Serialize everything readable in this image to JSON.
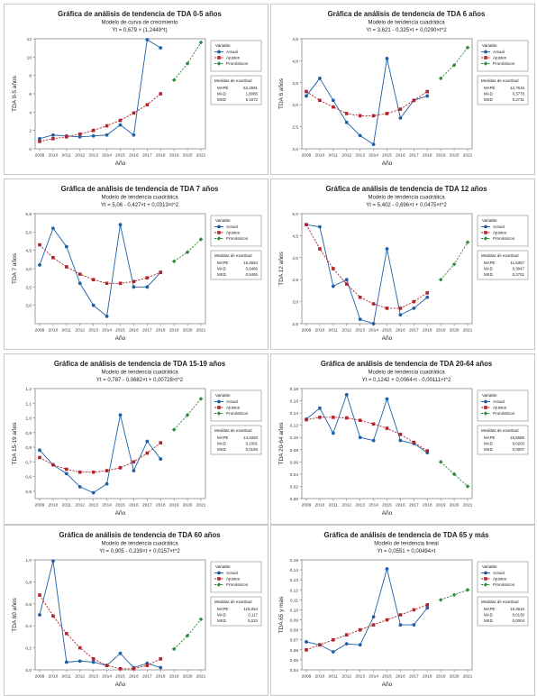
{
  "legend": {
    "header": "Variable",
    "actual": "Actual",
    "fits": "Ajustes",
    "forecast": "Pronósticos",
    "measures_title": "Medidas de exactitud"
  },
  "colors": {
    "actual": "#1f5fa8",
    "fits": "#b0242a",
    "forecast": "#2e8b3e"
  },
  "chart_data": [
    {
      "type": "line",
      "title": "Gráfica de análisis de tendencia de TDA 0-5 años",
      "subtitle": "Modelo de curva de crecimiento",
      "equation": "Yt = 0,679 × (1,2449^t)",
      "xlabel": "Año",
      "ylabel": "TDA 0-5 años",
      "ylim": [
        0,
        12
      ],
      "yticks": [
        "0",
        "2",
        "4",
        "6",
        "8",
        "10",
        "12"
      ],
      "x": [
        "2009",
        "2010",
        "2011",
        "2012",
        "2013",
        "2014",
        "2015",
        "2016",
        "2017",
        "2018",
        "2019",
        "2020",
        "2021"
      ],
      "series": [
        {
          "name": "Actual",
          "x": [
            2009,
            2010,
            2011,
            2012,
            2013,
            2014,
            2015,
            2016,
            2017,
            2018
          ],
          "values": [
            1.1,
            1.5,
            1.4,
            1.3,
            1.4,
            1.5,
            2.6,
            1.5,
            11.9,
            11.0
          ]
        },
        {
          "name": "Ajustes",
          "x": [
            2009,
            2010,
            2011,
            2012,
            2013,
            2014,
            2015,
            2016,
            2017,
            2018
          ],
          "values": [
            0.8,
            1.1,
            1.3,
            1.6,
            2.0,
            2.5,
            3.1,
            3.9,
            4.8,
            6.0
          ]
        },
        {
          "name": "Pronósticos",
          "x": [
            2019,
            2020,
            2021
          ],
          "values": [
            7.5,
            9.3,
            11.6
          ]
        }
      ],
      "accuracy": [
        [
          "MAPE",
          "52,2591"
        ],
        [
          "MAD",
          "1,8085"
        ],
        [
          "MSD",
          "6,1672"
        ]
      ]
    },
    {
      "type": "line",
      "title": "Gráfica de análisis de tendencia de TDA 6 años",
      "subtitle": "Modelo de tendencia cuadrática",
      "equation": "Yt = 3,621 - 0,325×t + 0,0290×t^2",
      "xlabel": "Año",
      "ylabel": "TDA 6 años",
      "ylim": [
        2.0,
        4.5
      ],
      "yticks": [
        "2,0",
        "2,5",
        "3,0",
        "3,5",
        "4,0",
        "4,5"
      ],
      "x": [
        "2009",
        "2010",
        "2011",
        "2012",
        "2013",
        "2014",
        "2015",
        "2016",
        "2017",
        "2018",
        "2019",
        "2020",
        "2021"
      ],
      "series": [
        {
          "name": "Actual",
          "x": [
            2009,
            2010,
            2011,
            2012,
            2013,
            2014,
            2015,
            2016,
            2017,
            2018
          ],
          "values": [
            3.2,
            3.6,
            3.1,
            2.6,
            2.3,
            2.1,
            4.05,
            2.7,
            3.1,
            3.2
          ]
        },
        {
          "name": "Ajustes",
          "x": [
            2009,
            2010,
            2011,
            2012,
            2013,
            2014,
            2015,
            2016,
            2017,
            2018
          ],
          "values": [
            3.3,
            3.1,
            2.95,
            2.8,
            2.75,
            2.75,
            2.8,
            2.9,
            3.1,
            3.3
          ]
        },
        {
          "name": "Pronósticos",
          "x": [
            2019,
            2020,
            2021
          ],
          "values": [
            3.6,
            3.9,
            4.3
          ]
        }
      ],
      "accuracy": [
        [
          "MAPE",
          "12,7616"
        ],
        [
          "MAD",
          "0,3778"
        ],
        [
          "MSD",
          "0,2731"
        ]
      ]
    },
    {
      "type": "line",
      "title": "Gráfica de análisis de tendencia de TDA 7 años",
      "subtitle": "Modelo de tendencia cuadrática",
      "equation": "Yt = 5,06 - 0,427×t + 0,0313×t^2",
      "xlabel": "Año",
      "ylabel": "TDA 7 años",
      "ylim": [
        2.5,
        5.5
      ],
      "yticks": [
        "3,0",
        "3,5",
        "4,0",
        "4,5",
        "5,0",
        "5,5"
      ],
      "x": [
        "2009",
        "2010",
        "2011",
        "2012",
        "2013",
        "2014",
        "2015",
        "2016",
        "2017",
        "2018",
        "2019",
        "2020",
        "2021"
      ],
      "series": [
        {
          "name": "Actual",
          "x": [
            2009,
            2010,
            2011,
            2012,
            2013,
            2014,
            2015,
            2016,
            2017,
            2018
          ],
          "values": [
            4.1,
            5.1,
            4.6,
            3.6,
            3.0,
            2.7,
            5.2,
            3.5,
            3.5,
            3.9
          ]
        },
        {
          "name": "Ajustes",
          "x": [
            2009,
            2010,
            2011,
            2012,
            2013,
            2014,
            2015,
            2016,
            2017,
            2018
          ],
          "values": [
            4.65,
            4.3,
            4.05,
            3.85,
            3.7,
            3.6,
            3.6,
            3.65,
            3.75,
            3.9
          ]
        },
        {
          "name": "Pronósticos",
          "x": [
            2019,
            2020,
            2021
          ],
          "values": [
            4.2,
            4.45,
            4.8
          ]
        }
      ],
      "accuracy": [
        [
          "MAPE",
          "15,2654"
        ],
        [
          "MAD",
          "0,6486"
        ],
        [
          "MSD",
          "0,5465"
        ]
      ]
    },
    {
      "type": "line",
      "title": "Gráfica de análisis de tendencia de TDA 12 años",
      "subtitle": "Modelo de tendencia cuadrática",
      "equation": "Yt = 5,402 - 0,696×t + 0,0475×t^2",
      "xlabel": "Año",
      "ylabel": "TDA 12 años",
      "ylim": [
        2.5,
        5.0
      ],
      "yticks": [
        "2,5",
        "3,0",
        "3,5",
        "4,0",
        "4,5",
        "5,0"
      ],
      "x": [
        "2009",
        "2010",
        "2011",
        "2012",
        "2013",
        "2014",
        "2015",
        "2016",
        "2017",
        "2018",
        "2019",
        "2020",
        "2021"
      ],
      "series": [
        {
          "name": "Actual",
          "x": [
            2009,
            2010,
            2011,
            2012,
            2013,
            2014,
            2015,
            2016,
            2017,
            2018
          ],
          "values": [
            4.75,
            4.7,
            3.35,
            3.5,
            2.6,
            2.5,
            4.2,
            2.7,
            2.85,
            3.1
          ]
        },
        {
          "name": "Ajustes",
          "x": [
            2009,
            2010,
            2011,
            2012,
            2013,
            2014,
            2015,
            2016,
            2017,
            2018
          ],
          "values": [
            4.75,
            4.2,
            3.75,
            3.4,
            3.1,
            2.95,
            2.85,
            2.85,
            3.0,
            3.2
          ]
        },
        {
          "name": "Pronósticos",
          "x": [
            2019,
            2020,
            2021
          ],
          "values": [
            3.5,
            3.85,
            4.35
          ]
        }
      ],
      "accuracy": [
        [
          "MAPE",
          "11,5357"
        ],
        [
          "MAD",
          "0,3947"
        ],
        [
          "MSD",
          "0,2751"
        ]
      ]
    },
    {
      "type": "line",
      "title": "Gráfica de análisis de tendencia de TDA 15-19 años",
      "subtitle": "Modelo de tendencia cuadrática",
      "equation": "Yt = 0,787 - 0,0682×t + 0,00728×t^2",
      "xlabel": "Año",
      "ylabel": "TDA 15-19 años",
      "ylim": [
        0.45,
        1.2
      ],
      "yticks": [
        "0,5",
        "0,6",
        "0,7",
        "0,8",
        "0,9",
        "1,0",
        "1,1",
        "1,2"
      ],
      "x": [
        "2009",
        "2010",
        "2011",
        "2012",
        "2013",
        "2014",
        "2015",
        "2016",
        "2017",
        "2018",
        "2019",
        "2020",
        "2021"
      ],
      "series": [
        {
          "name": "Actual",
          "x": [
            2009,
            2010,
            2011,
            2012,
            2013,
            2014,
            2015,
            2016,
            2017,
            2018
          ],
          "values": [
            0.78,
            0.68,
            0.62,
            0.53,
            0.49,
            0.55,
            1.02,
            0.64,
            0.84,
            0.72
          ]
        },
        {
          "name": "Ajustes",
          "x": [
            2009,
            2010,
            2011,
            2012,
            2013,
            2014,
            2015,
            2016,
            2017,
            2018
          ],
          "values": [
            0.73,
            0.68,
            0.65,
            0.63,
            0.63,
            0.64,
            0.66,
            0.7,
            0.76,
            0.83
          ]
        },
        {
          "name": "Pronósticos",
          "x": [
            2019,
            2020,
            2021
          ],
          "values": [
            0.92,
            1.02,
            1.13
          ]
        }
      ],
      "accuracy": [
        [
          "MAPE",
          "14,0383"
        ],
        [
          "MAD",
          "0,1001"
        ],
        [
          "MSD",
          "0,0193"
        ]
      ]
    },
    {
      "type": "line",
      "title": "Gráfica de análisis de tendencia de TDA 20-64 años",
      "subtitle": "Modelo de tendencia cuadrática",
      "equation": "Yt = 0,1242 + 0,0064×t - 0,00111×t^2",
      "xlabel": "Año",
      "ylabel": "TDA 20-64 años",
      "ylim": [
        0.0,
        0.18
      ],
      "yticks": [
        "0,00",
        "0,02",
        "0,04",
        "0,06",
        "0,08",
        "0,10",
        "0,12",
        "0,14",
        "0,16",
        "0,18"
      ],
      "x": [
        "2009",
        "2010",
        "2011",
        "2012",
        "2013",
        "2014",
        "2015",
        "2016",
        "2017",
        "2018",
        "2019",
        "2020",
        "2021"
      ],
      "series": [
        {
          "name": "Actual",
          "x": [
            2009,
            2010,
            2011,
            2012,
            2013,
            2014,
            2015,
            2016,
            2017,
            2018
          ],
          "values": [
            0.13,
            0.148,
            0.107,
            0.17,
            0.1,
            0.095,
            0.163,
            0.095,
            0.09,
            0.075
          ]
        },
        {
          "name": "Ajustes",
          "x": [
            2009,
            2010,
            2011,
            2012,
            2013,
            2014,
            2015,
            2016,
            2017,
            2018
          ],
          "values": [
            0.129,
            0.133,
            0.133,
            0.132,
            0.128,
            0.122,
            0.115,
            0.105,
            0.092,
            0.078
          ]
        },
        {
          "name": "Pronósticos",
          "x": [
            2019,
            2020,
            2021
          ],
          "values": [
            0.06,
            0.04,
            0.02
          ]
        }
      ],
      "accuracy": [
        [
          "MAPE",
          "16,5685"
        ],
        [
          "MAD",
          "0,0203"
        ],
        [
          "MSD",
          "0,0007"
        ]
      ]
    },
    {
      "type": "line",
      "title": "Gráfica de análisis de tendencia de TDA 60 años",
      "subtitle": "Modelo de tendencia cuadrática",
      "equation": "Yt = 0,905 - 0,239×t + 0,0157×t^2",
      "xlabel": "Año",
      "ylabel": "TDA 60 años",
      "ylim": [
        0.0,
        1.0
      ],
      "yticks": [
        "0,0",
        "0,2",
        "0,4",
        "0,6",
        "0,8",
        "1,0"
      ],
      "x": [
        "2009",
        "2010",
        "2011",
        "2012",
        "2013",
        "2014",
        "2015",
        "2016",
        "2017",
        "2018",
        "2019",
        "2020",
        "2021"
      ],
      "series": [
        {
          "name": "Actual",
          "x": [
            2009,
            2010,
            2011,
            2012,
            2013,
            2014,
            2015,
            2016,
            2017,
            2018
          ],
          "values": [
            0.5,
            0.99,
            0.07,
            0.08,
            0.07,
            0.04,
            0.15,
            0.02,
            0.06,
            0.02
          ]
        },
        {
          "name": "Ajustes",
          "x": [
            2009,
            2010,
            2011,
            2012,
            2013,
            2014,
            2015,
            2016,
            2017,
            2018
          ],
          "values": [
            0.68,
            0.49,
            0.33,
            0.2,
            0.1,
            0.04,
            0.01,
            0.01,
            0.04,
            0.1
          ]
        },
        {
          "name": "Pronósticos",
          "x": [
            2019,
            2020,
            2021
          ],
          "values": [
            0.19,
            0.31,
            0.46
          ]
        }
      ],
      "accuracy": [
        [
          "MAPE",
          "116,054"
        ],
        [
          "MAD",
          "0,117"
        ],
        [
          "MSD",
          "0,023"
        ]
      ]
    },
    {
      "type": "line",
      "title": "Gráfica de análisis de tendencia de TDA 65 y más",
      "subtitle": "Modelo de tendencia lineal",
      "equation": "Yt = 0,0551 + 0,00494×t",
      "xlabel": "Año",
      "ylabel": "TDA 65 y más",
      "ylim": [
        0.04,
        0.15
      ],
      "yticks": [
        "0,04",
        "0,05",
        "0,06",
        "0,07",
        "0,08",
        "0,09",
        "0,10",
        "0,11",
        "0,12",
        "0,13",
        "0,14",
        "0,15"
      ],
      "x": [
        "2009",
        "2010",
        "2011",
        "2012",
        "2013",
        "2014",
        "2015",
        "2016",
        "2017",
        "2018",
        "2019",
        "2020",
        "2021"
      ],
      "series": [
        {
          "name": "Actual",
          "x": [
            2009,
            2010,
            2011,
            2012,
            2013,
            2014,
            2015,
            2016,
            2017,
            2018
          ],
          "values": [
            0.068,
            0.065,
            0.058,
            0.066,
            0.065,
            0.093,
            0.141,
            0.085,
            0.085,
            0.102
          ]
        },
        {
          "name": "Ajustes",
          "x": [
            2009,
            2010,
            2011,
            2012,
            2013,
            2014,
            2015,
            2016,
            2017,
            2018
          ],
          "values": [
            0.06,
            0.065,
            0.07,
            0.075,
            0.08,
            0.085,
            0.09,
            0.095,
            0.1,
            0.105
          ]
        },
        {
          "name": "Pronósticos",
          "x": [
            2019,
            2020,
            2021
          ],
          "values": [
            0.11,
            0.115,
            0.12
          ]
        }
      ],
      "accuracy": [
        [
          "MAPE",
          "15,3915"
        ],
        [
          "MAD",
          "0,0130"
        ],
        [
          "MSD",
          "0,0004"
        ]
      ]
    }
  ]
}
